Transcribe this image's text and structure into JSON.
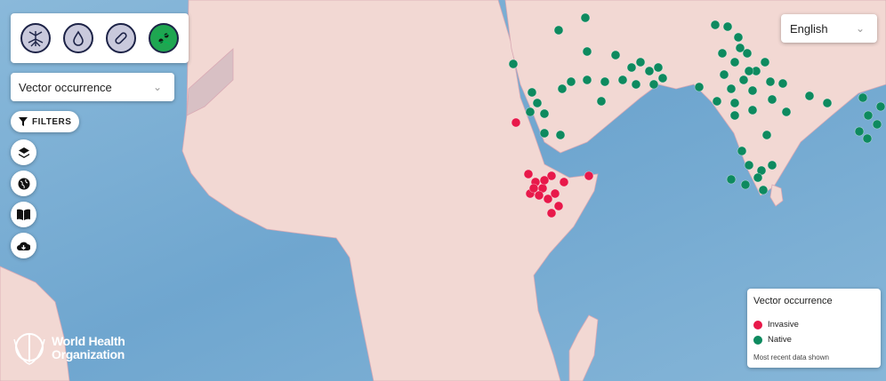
{
  "disease_buttons": [
    {
      "icon": "mosquito-icon",
      "active": false
    },
    {
      "icon": "drop-icon",
      "active": false
    },
    {
      "icon": "pill-icon",
      "active": false
    },
    {
      "icon": "vector-map-icon",
      "active": true
    }
  ],
  "layer_select": {
    "value": "Vector occurrence"
  },
  "filters_label": "FILTERS",
  "side_buttons": [
    "layers-icon",
    "globe-icon",
    "book-icon",
    "cloud-download-icon"
  ],
  "language": {
    "value": "English"
  },
  "legend": {
    "title": "Vector occurrence",
    "items": [
      {
        "label": "Invasive",
        "color": "#e8194a"
      },
      {
        "label": "Native",
        "color": "#0e8a5f"
      }
    ],
    "note": "Most recent data shown"
  },
  "logo": {
    "line1": "World Health",
    "line2": "Organization"
  },
  "colors": {
    "water": "#7fb0d3",
    "land": "#f2d8d3",
    "invasive": "#e8194a",
    "native": "#0e8a5f"
  }
}
